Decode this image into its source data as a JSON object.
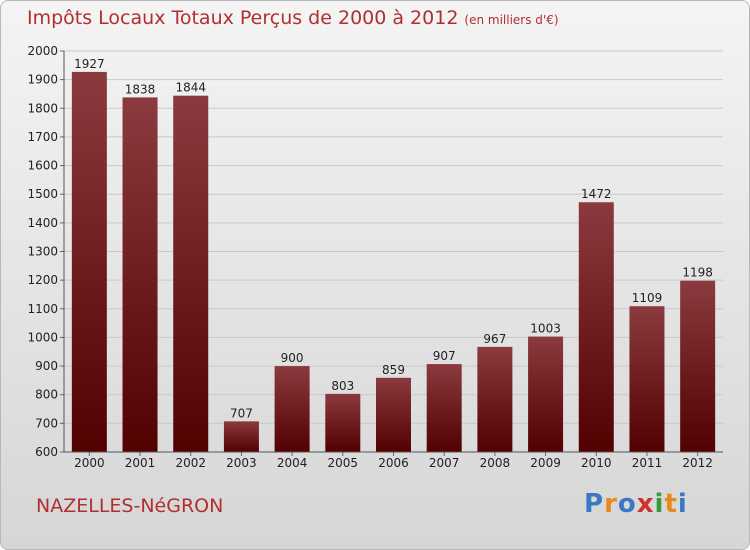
{
  "header": {
    "title": "Impôts Locaux Totaux Perçus de 2000 à 2012",
    "subtitle": "(en milliers d'€)"
  },
  "footer": {
    "place": "NAZELLES-NéGRON",
    "logo_letters": [
      "P",
      "r",
      "o",
      "x",
      "i",
      "t",
      "i"
    ],
    "logo_colors": [
      "#3a78c4",
      "#e8891c",
      "#3a78c4",
      "#d03030",
      "#3a9a3a",
      "#e8891c",
      "#3a78c4"
    ]
  },
  "colors": {
    "bar_top": "#8b3a3f",
    "bar_bottom": "#520000",
    "grid": "#c9c9c9",
    "title": "#b03030"
  },
  "chart_data": {
    "type": "bar",
    "categories": [
      "2000",
      "2001",
      "2002",
      "2003",
      "2004",
      "2005",
      "2006",
      "2007",
      "2008",
      "2009",
      "2010",
      "2011",
      "2012"
    ],
    "values": [
      1927,
      1838,
      1844,
      707,
      900,
      803,
      859,
      907,
      967,
      1003,
      1472,
      1109,
      1198
    ],
    "ylim": [
      600,
      2000
    ],
    "yticks": [
      600,
      700,
      800,
      900,
      1000,
      1100,
      1200,
      1300,
      1400,
      1500,
      1600,
      1700,
      1800,
      1900,
      2000
    ],
    "grid": true,
    "show_data_labels": true
  }
}
